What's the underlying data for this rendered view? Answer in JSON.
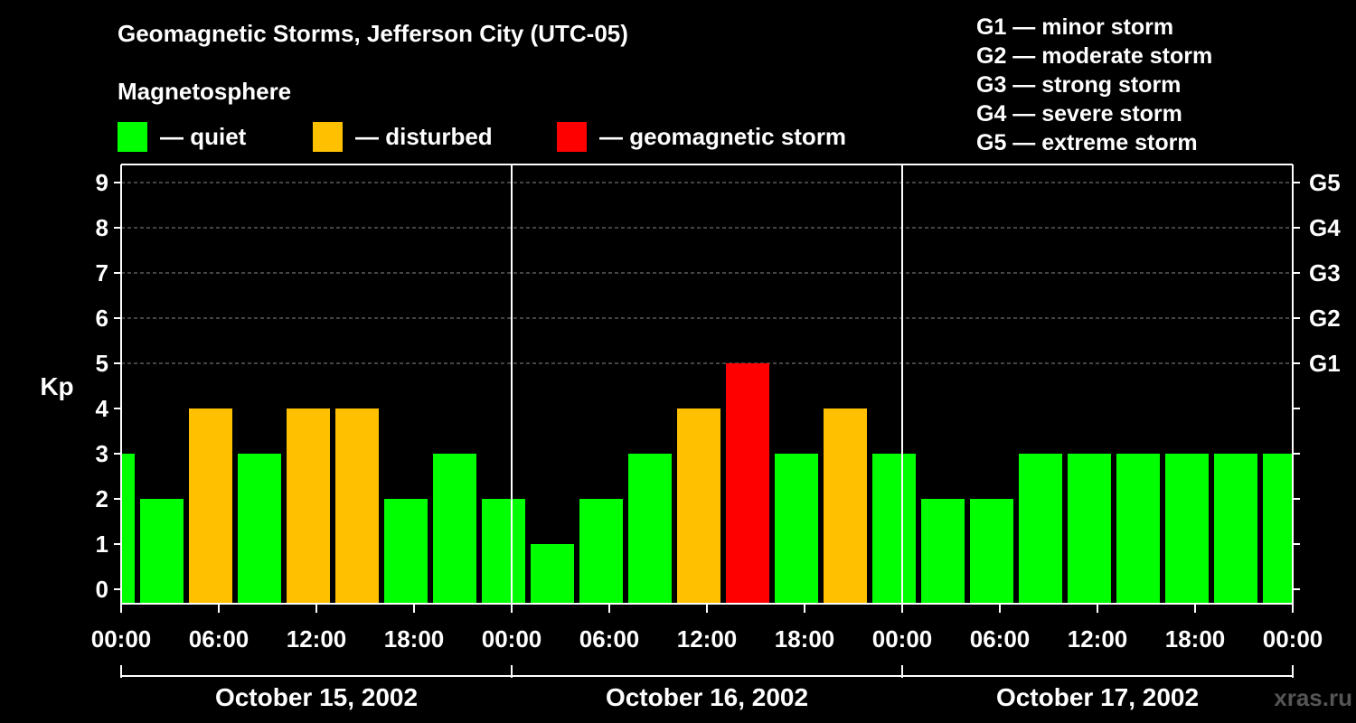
{
  "title": "Geomagnetic Storms, Jefferson City (UTC-05)",
  "subtitle": "Magnetosphere",
  "legend": [
    {
      "label": "— quiet",
      "color": "#00ff00"
    },
    {
      "label": "— disturbed",
      "color": "#ffc000"
    },
    {
      "label": "— geomagnetic storm",
      "color": "#ff0000"
    }
  ],
  "storm_levels": [
    "G1 — minor storm",
    "G2 — moderate storm",
    "G3 — strong storm",
    "G4 — severe storm",
    "G5 — extreme storm"
  ],
  "watermark": "xras.ru",
  "colors": {
    "quiet": "#00ff00",
    "disturbed": "#ffc000",
    "storm": "#ff0000",
    "axis": "#ffffff",
    "grid": "#888888",
    "background": "#000000"
  },
  "chart_data": {
    "type": "bar",
    "ylabel": "Kp",
    "ylim": [
      0,
      9
    ],
    "yticks": [
      0,
      1,
      2,
      3,
      4,
      5,
      6,
      7,
      8,
      9
    ],
    "right_ticks": [
      {
        "kp": 5,
        "label": "G1"
      },
      {
        "kp": 6,
        "label": "G2"
      },
      {
        "kp": 7,
        "label": "G3"
      },
      {
        "kp": 8,
        "label": "G4"
      },
      {
        "kp": 9,
        "label": "G5"
      }
    ],
    "x_hour_range": [
      0,
      72
    ],
    "xtick_hours": [
      0,
      6,
      12,
      18,
      24,
      30,
      36,
      42,
      48,
      54,
      60,
      66,
      72
    ],
    "xtick_labels": [
      "00:00",
      "06:00",
      "12:00",
      "18:00",
      "00:00",
      "06:00",
      "12:00",
      "18:00",
      "00:00",
      "06:00",
      "12:00",
      "18:00",
      "00:00"
    ],
    "days": [
      {
        "label": "October 15, 2002",
        "start_hour": 0,
        "end_hour": 24
      },
      {
        "label": "October 16, 2002",
        "start_hour": 24,
        "end_hour": 48
      },
      {
        "label": "October 17, 2002",
        "start_hour": 48,
        "end_hour": 72
      }
    ],
    "bars": [
      {
        "start_hour": 0,
        "end_hour": 1,
        "kp": 3,
        "state": "quiet"
      },
      {
        "start_hour": 1,
        "end_hour": 4,
        "kp": 2,
        "state": "quiet"
      },
      {
        "start_hour": 4,
        "end_hour": 7,
        "kp": 4,
        "state": "disturbed"
      },
      {
        "start_hour": 7,
        "end_hour": 10,
        "kp": 3,
        "state": "quiet"
      },
      {
        "start_hour": 10,
        "end_hour": 13,
        "kp": 4,
        "state": "disturbed"
      },
      {
        "start_hour": 13,
        "end_hour": 16,
        "kp": 4,
        "state": "disturbed"
      },
      {
        "start_hour": 16,
        "end_hour": 19,
        "kp": 2,
        "state": "quiet"
      },
      {
        "start_hour": 19,
        "end_hour": 22,
        "kp": 3,
        "state": "quiet"
      },
      {
        "start_hour": 22,
        "end_hour": 25,
        "kp": 2,
        "state": "quiet"
      },
      {
        "start_hour": 25,
        "end_hour": 28,
        "kp": 1,
        "state": "quiet"
      },
      {
        "start_hour": 28,
        "end_hour": 31,
        "kp": 2,
        "state": "quiet"
      },
      {
        "start_hour": 31,
        "end_hour": 34,
        "kp": 3,
        "state": "quiet"
      },
      {
        "start_hour": 34,
        "end_hour": 37,
        "kp": 4,
        "state": "disturbed"
      },
      {
        "start_hour": 37,
        "end_hour": 40,
        "kp": 5,
        "state": "storm"
      },
      {
        "start_hour": 40,
        "end_hour": 43,
        "kp": 3,
        "state": "quiet"
      },
      {
        "start_hour": 43,
        "end_hour": 46,
        "kp": 4,
        "state": "disturbed"
      },
      {
        "start_hour": 46,
        "end_hour": 49,
        "kp": 3,
        "state": "quiet"
      },
      {
        "start_hour": 49,
        "end_hour": 52,
        "kp": 2,
        "state": "quiet"
      },
      {
        "start_hour": 52,
        "end_hour": 55,
        "kp": 2,
        "state": "quiet"
      },
      {
        "start_hour": 55,
        "end_hour": 58,
        "kp": 3,
        "state": "quiet"
      },
      {
        "start_hour": 58,
        "end_hour": 61,
        "kp": 3,
        "state": "quiet"
      },
      {
        "start_hour": 61,
        "end_hour": 64,
        "kp": 3,
        "state": "quiet"
      },
      {
        "start_hour": 64,
        "end_hour": 67,
        "kp": 3,
        "state": "quiet"
      },
      {
        "start_hour": 67,
        "end_hour": 70,
        "kp": 3,
        "state": "quiet"
      },
      {
        "start_hour": 70,
        "end_hour": 72,
        "kp": 3,
        "state": "quiet"
      }
    ]
  }
}
